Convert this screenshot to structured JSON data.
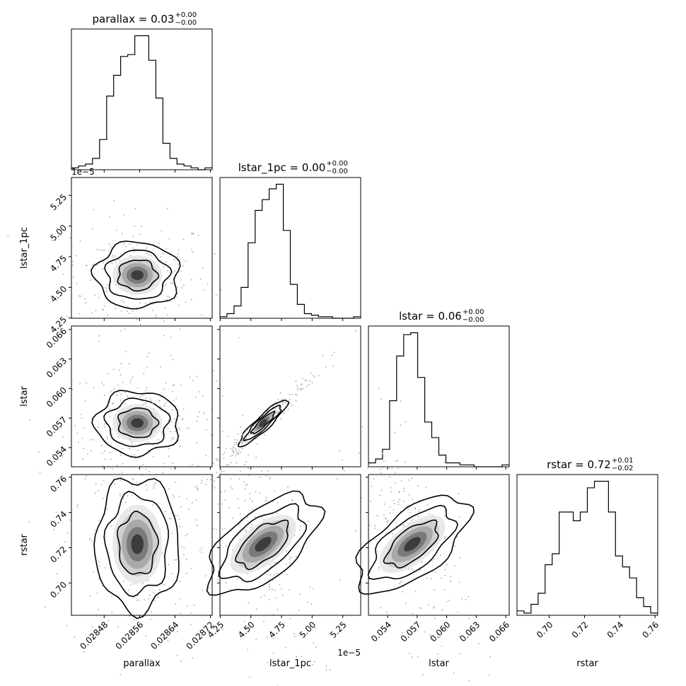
{
  "chart_data": {
    "type": "corner",
    "parameters": [
      "parallax",
      "lstar_1pc",
      "lstar",
      "rstar"
    ],
    "titles": [
      {
        "param": "parallax",
        "median": "0.03",
        "plus": "+0.00",
        "minus": "−0.00"
      },
      {
        "param": "lstar_1pc",
        "median": "0.00",
        "plus": "+0.00",
        "minus": "−0.00"
      },
      {
        "param": "lstar",
        "median": "0.06",
        "plus": "+0.00",
        "minus": "−0.00"
      },
      {
        "param": "rstar",
        "median": "0.72",
        "plus": "+0.01",
        "minus": "−0.02"
      }
    ],
    "axis_ranges": {
      "parallax": [
        0.028406,
        0.028724
      ],
      "lstar_1pc": [
        4.248,
        5.396
      ],
      "lstar": [
        0.05205,
        0.06635
      ],
      "rstar": [
        0.6817,
        0.7615
      ]
    },
    "x_tick_labels": {
      "parallax": [
        "0.02848",
        "0.02856",
        "0.02864",
        "0.02872"
      ],
      "lstar_1pc": [
        "4.25",
        "4.50",
        "4.75",
        "5.00",
        "5.25"
      ],
      "lstar": [
        "0.054",
        "0.057",
        "0.060",
        "0.063",
        "0.066"
      ],
      "rstar": [
        "0.70",
        "0.72",
        "0.74",
        "0.76"
      ]
    },
    "y_tick_labels": {
      "lstar_1pc": [
        "4.25",
        "4.50",
        "4.75",
        "5.00",
        "5.25"
      ],
      "lstar": [
        "0.054",
        "0.057",
        "0.060",
        "0.063",
        "0.066"
      ],
      "rstar": [
        "0.70",
        "0.72",
        "0.74",
        "0.76"
      ]
    },
    "offset_text": "1e−5",
    "histograms": {
      "parallax": {
        "range": [
          0.028406,
          0.028724
        ],
        "counts": [
          1,
          2,
          3,
          6,
          16,
          39,
          50,
          60,
          61,
          71,
          71,
          58,
          38,
          14,
          6,
          3,
          2,
          1,
          0,
          1
        ]
      },
      "lstar_1pc": {
        "range": [
          4.248,
          5.396
        ],
        "counts": [
          1,
          3,
          8,
          20,
          49,
          70,
          77,
          84,
          87,
          57,
          22,
          9,
          3,
          2,
          1,
          1,
          0,
          0,
          0,
          1
        ]
      },
      "lstar": {
        "range": [
          0.05205,
          0.06635
        ],
        "counts": [
          2,
          4,
          9,
          34,
          57,
          68,
          69,
          46,
          23,
          15,
          6,
          2,
          2,
          1,
          1,
          0,
          0,
          0,
          0,
          1
        ]
      },
      "rstar": {
        "range": [
          0.6817,
          0.7615
        ],
        "counts": [
          2,
          1,
          5,
          10,
          23,
          28,
          47,
          47,
          43,
          47,
          58,
          61,
          61,
          47,
          27,
          22,
          17,
          8,
          4,
          1
        ]
      }
    }
  }
}
